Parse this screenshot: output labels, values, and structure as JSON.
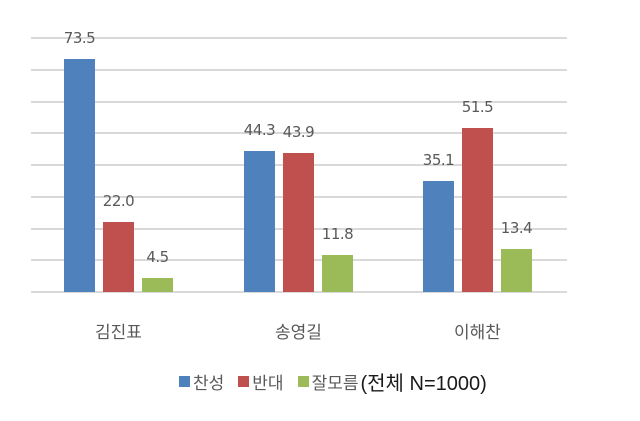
{
  "chart_data": {
    "type": "bar",
    "title": "",
    "categories": [
      "김진표",
      "송영길",
      "이해찬"
    ],
    "series": [
      {
        "name": "찬성",
        "color": "#4f81bd",
        "values": [
          73.5,
          44.3,
          35.1
        ],
        "labels": [
          "73.5",
          "44.3",
          "35.1"
        ]
      },
      {
        "name": "반대",
        "color": "#c0504d",
        "values": [
          22.0,
          43.9,
          51.5
        ],
        "labels": [
          "22.0",
          "43.9",
          "51.5"
        ]
      },
      {
        "name": "잘모름",
        "color": "#9bbb59",
        "values": [
          4.5,
          11.8,
          13.4
        ],
        "labels": [
          "4.5",
          "11.8",
          "13.4"
        ]
      }
    ],
    "xlabel": "",
    "ylabel": "",
    "ylim": [
      0,
      80
    ],
    "grid": true,
    "y_axis_labels_visible": false,
    "legend_position": "bottom-right",
    "legend_note": "(전체 N=1000)"
  }
}
